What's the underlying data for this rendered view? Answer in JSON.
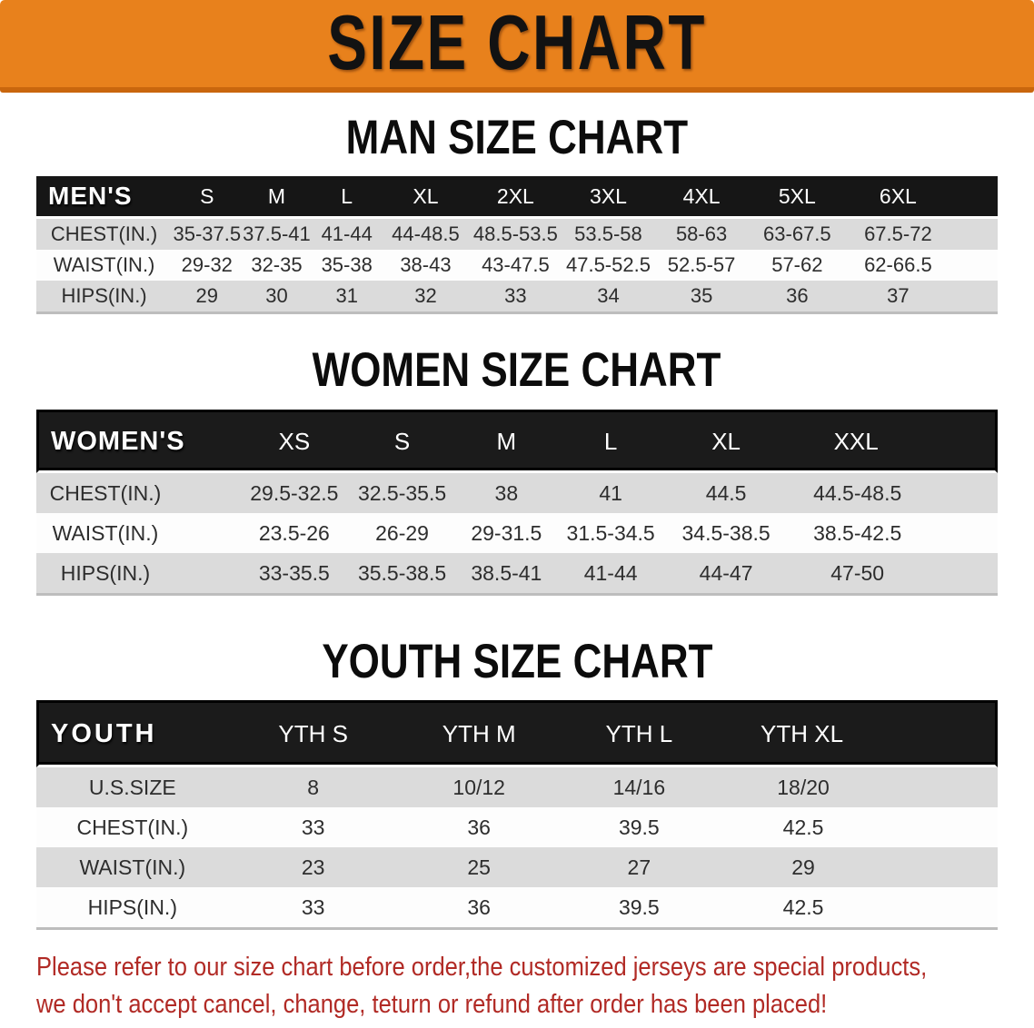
{
  "banner": {
    "title": "SIZE CHART"
  },
  "colors": {
    "banner_bg": "#E8811C",
    "banner_edge": "#C9660D",
    "header_bg": "#161616",
    "row_gray": "#DBDBDB",
    "row_white": "#FDFDFD",
    "footer_text": "#B12A25"
  },
  "sections": [
    {
      "id": "men",
      "title": "MAN SIZE CHART",
      "corner_label": "MEN'S",
      "sizes": [
        "S",
        "M",
        "L",
        "XL",
        "2XL",
        "3XL",
        "4XL",
        "5XL",
        "6XL"
      ],
      "rows": [
        {
          "label": "CHEST(IN.)",
          "values": [
            "35-37.5",
            "37.5-41",
            "41-44",
            "44-48.5",
            "48.5-53.5",
            "53.5-58",
            "58-63",
            "63-67.5",
            "67.5-72"
          ]
        },
        {
          "label": "WAIST(IN.)",
          "values": [
            "29-32",
            "32-35",
            "35-38",
            "38-43",
            "43-47.5",
            "47.5-52.5",
            "52.5-57",
            "57-62",
            "62-66.5"
          ]
        },
        {
          "label": "HIPS(IN.)",
          "values": [
            "29",
            "30",
            "31",
            "32",
            "33",
            "34",
            "35",
            "36",
            "37"
          ]
        }
      ]
    },
    {
      "id": "women",
      "title": "WOMEN SIZE CHART",
      "corner_label": "WOMEN'S",
      "sizes": [
        "XS",
        "S",
        "M",
        "L",
        "XL",
        "XXL"
      ],
      "rows": [
        {
          "label": "CHEST(IN.)",
          "values": [
            "29.5-32.5",
            "32.5-35.5",
            "38",
            "41",
            "44.5",
            "44.5-48.5"
          ]
        },
        {
          "label": "WAIST(IN.)",
          "values": [
            "23.5-26",
            "26-29",
            "29-31.5",
            "31.5-34.5",
            "34.5-38.5",
            "38.5-42.5"
          ]
        },
        {
          "label": "HIPS(IN.)",
          "values": [
            "33-35.5",
            "35.5-38.5",
            "38.5-41",
            "41-44",
            "44-47",
            "47-50"
          ]
        }
      ]
    },
    {
      "id": "youth",
      "title": "YOUTH SIZE CHART",
      "corner_label": "YOUTH",
      "sizes": [
        "YTH S",
        "YTH M",
        "YTH L",
        "YTH XL"
      ],
      "rows": [
        {
          "label": "U.S.SIZE",
          "values": [
            "8",
            "10/12",
            "14/16",
            "18/20"
          ]
        },
        {
          "label": "CHEST(IN.)",
          "values": [
            "33",
            "36",
            "39.5",
            "42.5"
          ]
        },
        {
          "label": "WAIST(IN.)",
          "values": [
            "23",
            "25",
            "27",
            "29"
          ]
        },
        {
          "label": "HIPS(IN.)",
          "values": [
            "33",
            "36",
            "39.5",
            "42.5"
          ]
        }
      ]
    }
  ],
  "footer": {
    "line1": "Please refer to our size chart before order,the customized jerseys are special products,",
    "line2": "we don't accept cancel, change, teturn or refund after order has been placed!"
  }
}
